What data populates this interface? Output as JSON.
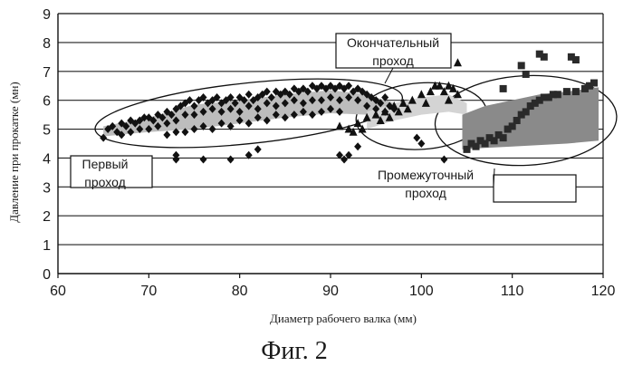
{
  "chart_data": {
    "type": "scatter",
    "xlabel": "Диаметр рабочего валка (мм)",
    "ylabel": "Давление при прокатке (мн)",
    "xlim": [
      60,
      120
    ],
    "ylim": [
      0,
      9
    ],
    "xticks": [
      60,
      70,
      80,
      90,
      100,
      110,
      120
    ],
    "yticks": [
      0,
      1,
      2,
      3,
      4,
      5,
      6,
      7,
      8,
      9
    ],
    "grid": "horizontal",
    "legend": "none",
    "caption": "Фиг. 2",
    "annotations": {
      "first_pass": [
        "Первый",
        "проход"
      ],
      "final_pass": [
        "Окончательный",
        "проход"
      ],
      "intermediate_pass": [
        "Промежуточный",
        "проход"
      ]
    },
    "series": [
      {
        "marker": "diamond",
        "points": [
          [
            65,
            4.7
          ],
          [
            65.5,
            5.0
          ],
          [
            66,
            5.1
          ],
          [
            66.5,
            4.9
          ],
          [
            67,
            5.2
          ],
          [
            67.5,
            5.1
          ],
          [
            68,
            5.3
          ],
          [
            68.5,
            5.2
          ],
          [
            69,
            5.3
          ],
          [
            69.5,
            5.4
          ],
          [
            70,
            5.4
          ],
          [
            70.5,
            5.3
          ],
          [
            71,
            5.5
          ],
          [
            71.5,
            5.4
          ],
          [
            72,
            5.6
          ],
          [
            72.5,
            5.5
          ],
          [
            73,
            5.7
          ],
          [
            73.5,
            5.8
          ],
          [
            74,
            5.9
          ],
          [
            74.5,
            6.0
          ],
          [
            75,
            5.8
          ],
          [
            75.5,
            6.0
          ],
          [
            76,
            6.1
          ],
          [
            76.5,
            5.9
          ],
          [
            77,
            6.0
          ],
          [
            77.5,
            6.1
          ],
          [
            78,
            5.9
          ],
          [
            78.5,
            6.0
          ],
          [
            79,
            6.1
          ],
          [
            79.5,
            5.9
          ],
          [
            80,
            6.1
          ],
          [
            80.5,
            6.0
          ],
          [
            81,
            6.2
          ],
          [
            81.5,
            6.0
          ],
          [
            82,
            6.1
          ],
          [
            82.5,
            6.2
          ],
          [
            83,
            6.3
          ],
          [
            83.5,
            6.1
          ],
          [
            84,
            6.3
          ],
          [
            84.5,
            6.2
          ],
          [
            85,
            6.3
          ],
          [
            85.5,
            6.2
          ],
          [
            86,
            6.4
          ],
          [
            86.5,
            6.3
          ],
          [
            87,
            6.4
          ],
          [
            87.5,
            6.3
          ],
          [
            88,
            6.5
          ],
          [
            88.5,
            6.4
          ],
          [
            89,
            6.5
          ],
          [
            89.5,
            6.4
          ],
          [
            90,
            6.5
          ],
          [
            90.5,
            6.4
          ],
          [
            91,
            6.5
          ],
          [
            91.5,
            6.4
          ],
          [
            92,
            6.5
          ],
          [
            92.5,
            6.3
          ],
          [
            93,
            6.4
          ],
          [
            93.5,
            6.3
          ],
          [
            94,
            6.2
          ],
          [
            94.5,
            6.1
          ],
          [
            95,
            6.0
          ],
          [
            95.5,
            5.9
          ],
          [
            96,
            6.1
          ],
          [
            96.5,
            5.8
          ],
          [
            97,
            5.7
          ],
          [
            67,
            4.8
          ],
          [
            68,
            4.9
          ],
          [
            69,
            5.0
          ],
          [
            70,
            5.0
          ],
          [
            71,
            5.1
          ],
          [
            72,
            5.2
          ],
          [
            73,
            5.3
          ],
          [
            74,
            5.5
          ],
          [
            75,
            5.5
          ],
          [
            76,
            5.6
          ],
          [
            77,
            5.7
          ],
          [
            78,
            5.6
          ],
          [
            79,
            5.7
          ],
          [
            80,
            5.6
          ],
          [
            81,
            5.8
          ],
          [
            82,
            5.7
          ],
          [
            83,
            5.9
          ],
          [
            84,
            5.8
          ],
          [
            85,
            5.9
          ],
          [
            86,
            6.0
          ],
          [
            87,
            5.9
          ],
          [
            88,
            6.0
          ],
          [
            89,
            6.0
          ],
          [
            90,
            6.1
          ],
          [
            91,
            6.0
          ],
          [
            92,
            6.1
          ],
          [
            93,
            6.0
          ],
          [
            94,
            5.8
          ],
          [
            95,
            5.7
          ],
          [
            96,
            5.6
          ],
          [
            72,
            4.8
          ],
          [
            73,
            4.9
          ],
          [
            74,
            4.9
          ],
          [
            75,
            5.0
          ],
          [
            76,
            5.1
          ],
          [
            77,
            5.0
          ],
          [
            78,
            5.2
          ],
          [
            79,
            5.1
          ],
          [
            80,
            5.3
          ],
          [
            81,
            5.2
          ],
          [
            82,
            5.4
          ],
          [
            83,
            5.3
          ],
          [
            84,
            5.5
          ],
          [
            85,
            5.4
          ],
          [
            86,
            5.5
          ],
          [
            87,
            5.6
          ],
          [
            88,
            5.5
          ],
          [
            89,
            5.6
          ],
          [
            90,
            5.7
          ],
          [
            91,
            5.6
          ],
          [
            73,
            4.1
          ],
          [
            73,
            3.95
          ],
          [
            76,
            3.95
          ],
          [
            79,
            3.95
          ],
          [
            81,
            4.1
          ],
          [
            82,
            4.3
          ],
          [
            91,
            4.1
          ],
          [
            91.5,
            3.95
          ],
          [
            92,
            4.1
          ],
          [
            93,
            4.4
          ],
          [
            99.5,
            4.7
          ],
          [
            100,
            4.5
          ],
          [
            102.5,
            3.95
          ]
        ]
      },
      {
        "marker": "triangle",
        "points": [
          [
            91,
            5.1
          ],
          [
            92,
            5.0
          ],
          [
            93,
            5.2
          ],
          [
            94,
            5.4
          ],
          [
            95,
            5.5
          ],
          [
            96,
            5.6
          ],
          [
            97,
            5.8
          ],
          [
            98,
            5.9
          ],
          [
            99,
            6.0
          ],
          [
            100,
            6.2
          ],
          [
            101,
            6.3
          ],
          [
            101.5,
            6.5
          ],
          [
            102,
            6.5
          ],
          [
            102.5,
            6.3
          ],
          [
            103,
            6.5
          ],
          [
            103.5,
            6.4
          ],
          [
            104,
            6.2
          ],
          [
            104,
            7.3
          ],
          [
            103,
            6.0
          ],
          [
            100.5,
            5.9
          ],
          [
            98.5,
            5.7
          ],
          [
            97.5,
            5.6
          ],
          [
            96.5,
            5.4
          ],
          [
            95.5,
            5.3
          ],
          [
            93.5,
            5.0
          ],
          [
            92.5,
            4.9
          ]
        ]
      },
      {
        "marker": "square",
        "points": [
          [
            105,
            4.3
          ],
          [
            105.5,
            4.5
          ],
          [
            106,
            4.4
          ],
          [
            106.5,
            4.6
          ],
          [
            107,
            4.5
          ],
          [
            107.5,
            4.7
          ],
          [
            108,
            4.6
          ],
          [
            108.5,
            4.8
          ],
          [
            109,
            4.7
          ],
          [
            109.5,
            5.0
          ],
          [
            110,
            5.1
          ],
          [
            110.5,
            5.3
          ],
          [
            111,
            5.5
          ],
          [
            111.5,
            5.6
          ],
          [
            112,
            5.8
          ],
          [
            112.5,
            5.9
          ],
          [
            113,
            6.0
          ],
          [
            113.5,
            6.1
          ],
          [
            114,
            6.1
          ],
          [
            114.5,
            6.2
          ],
          [
            115,
            6.2
          ],
          [
            116,
            6.3
          ],
          [
            117,
            6.3
          ],
          [
            118,
            6.4
          ],
          [
            118.5,
            6.5
          ],
          [
            119,
            6.6
          ],
          [
            109,
            6.4
          ],
          [
            111,
            7.2
          ],
          [
            111.5,
            6.9
          ],
          [
            113,
            7.6
          ],
          [
            113.5,
            7.5
          ],
          [
            116.5,
            7.5
          ],
          [
            117,
            7.4
          ]
        ]
      }
    ]
  }
}
